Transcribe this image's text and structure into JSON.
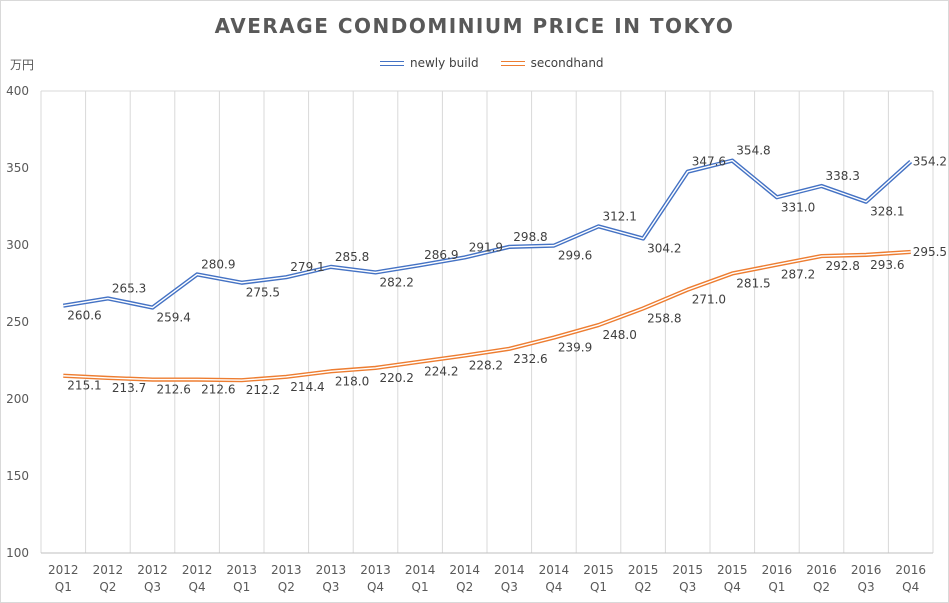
{
  "unit_label": "万円",
  "chart_data": {
    "type": "line",
    "title": "AVERAGE CONDOMINIUM PRICE IN TOKYO",
    "xlabel": "",
    "ylabel": "万円",
    "ylim": [
      100,
      400
    ],
    "yticks": [
      100,
      150,
      200,
      250,
      300,
      350,
      400
    ],
    "grid": "vertical",
    "legend_position": "top-center",
    "categories": [
      [
        "2012",
        "Q1"
      ],
      [
        "2012",
        "Q2"
      ],
      [
        "2012",
        "Q3"
      ],
      [
        "2012",
        "Q4"
      ],
      [
        "2013",
        "Q1"
      ],
      [
        "2013",
        "Q2"
      ],
      [
        "2013",
        "Q3"
      ],
      [
        "2013",
        "Q4"
      ],
      [
        "2014",
        "Q1"
      ],
      [
        "2014",
        "Q2"
      ],
      [
        "2014",
        "Q3"
      ],
      [
        "2014",
        "Q4"
      ],
      [
        "2015",
        "Q1"
      ],
      [
        "2015",
        "Q2"
      ],
      [
        "2015",
        "Q3"
      ],
      [
        "2015",
        "Q4"
      ],
      [
        "2016",
        "Q1"
      ],
      [
        "2016",
        "Q2"
      ],
      [
        "2016",
        "Q3"
      ],
      [
        "2016",
        "Q4"
      ]
    ],
    "series": [
      {
        "name": "newly build",
        "color": "#4472c4",
        "values": [
          260.6,
          265.3,
          259.4,
          280.9,
          275.5,
          279.1,
          285.8,
          282.2,
          286.9,
          291.9,
          298.8,
          299.6,
          312.1,
          304.2,
          347.6,
          354.8,
          331.0,
          338.3,
          328.1,
          354.2
        ],
        "labels": [
          "260.6",
          "265.3",
          "259.4",
          "280.9",
          "275.5",
          "279.1",
          "285.8",
          "282.2",
          "286.9",
          "291.9",
          "298.8",
          "299.6",
          "312.1",
          "304.2",
          "347.6",
          "354.8",
          "331.0",
          "338.3",
          "328.1",
          "354.2"
        ]
      },
      {
        "name": "secondhand",
        "color": "#ed7d31",
        "values": [
          215.1,
          213.7,
          212.6,
          212.6,
          212.2,
          214.4,
          218.0,
          220.2,
          224.2,
          228.2,
          232.6,
          239.9,
          248.0,
          258.8,
          271.0,
          281.5,
          287.2,
          292.8,
          293.6,
          295.5
        ],
        "labels": [
          "215.1",
          "213.7",
          "212.6",
          "212.6",
          "212.2",
          "214.4",
          "218.0",
          "220.2",
          "224.2",
          "228.2",
          "232.6",
          "239.9",
          "248.0",
          "258.8",
          "271.0",
          "281.5",
          "287.2",
          "292.8",
          "293.6",
          "295.5"
        ]
      }
    ]
  }
}
